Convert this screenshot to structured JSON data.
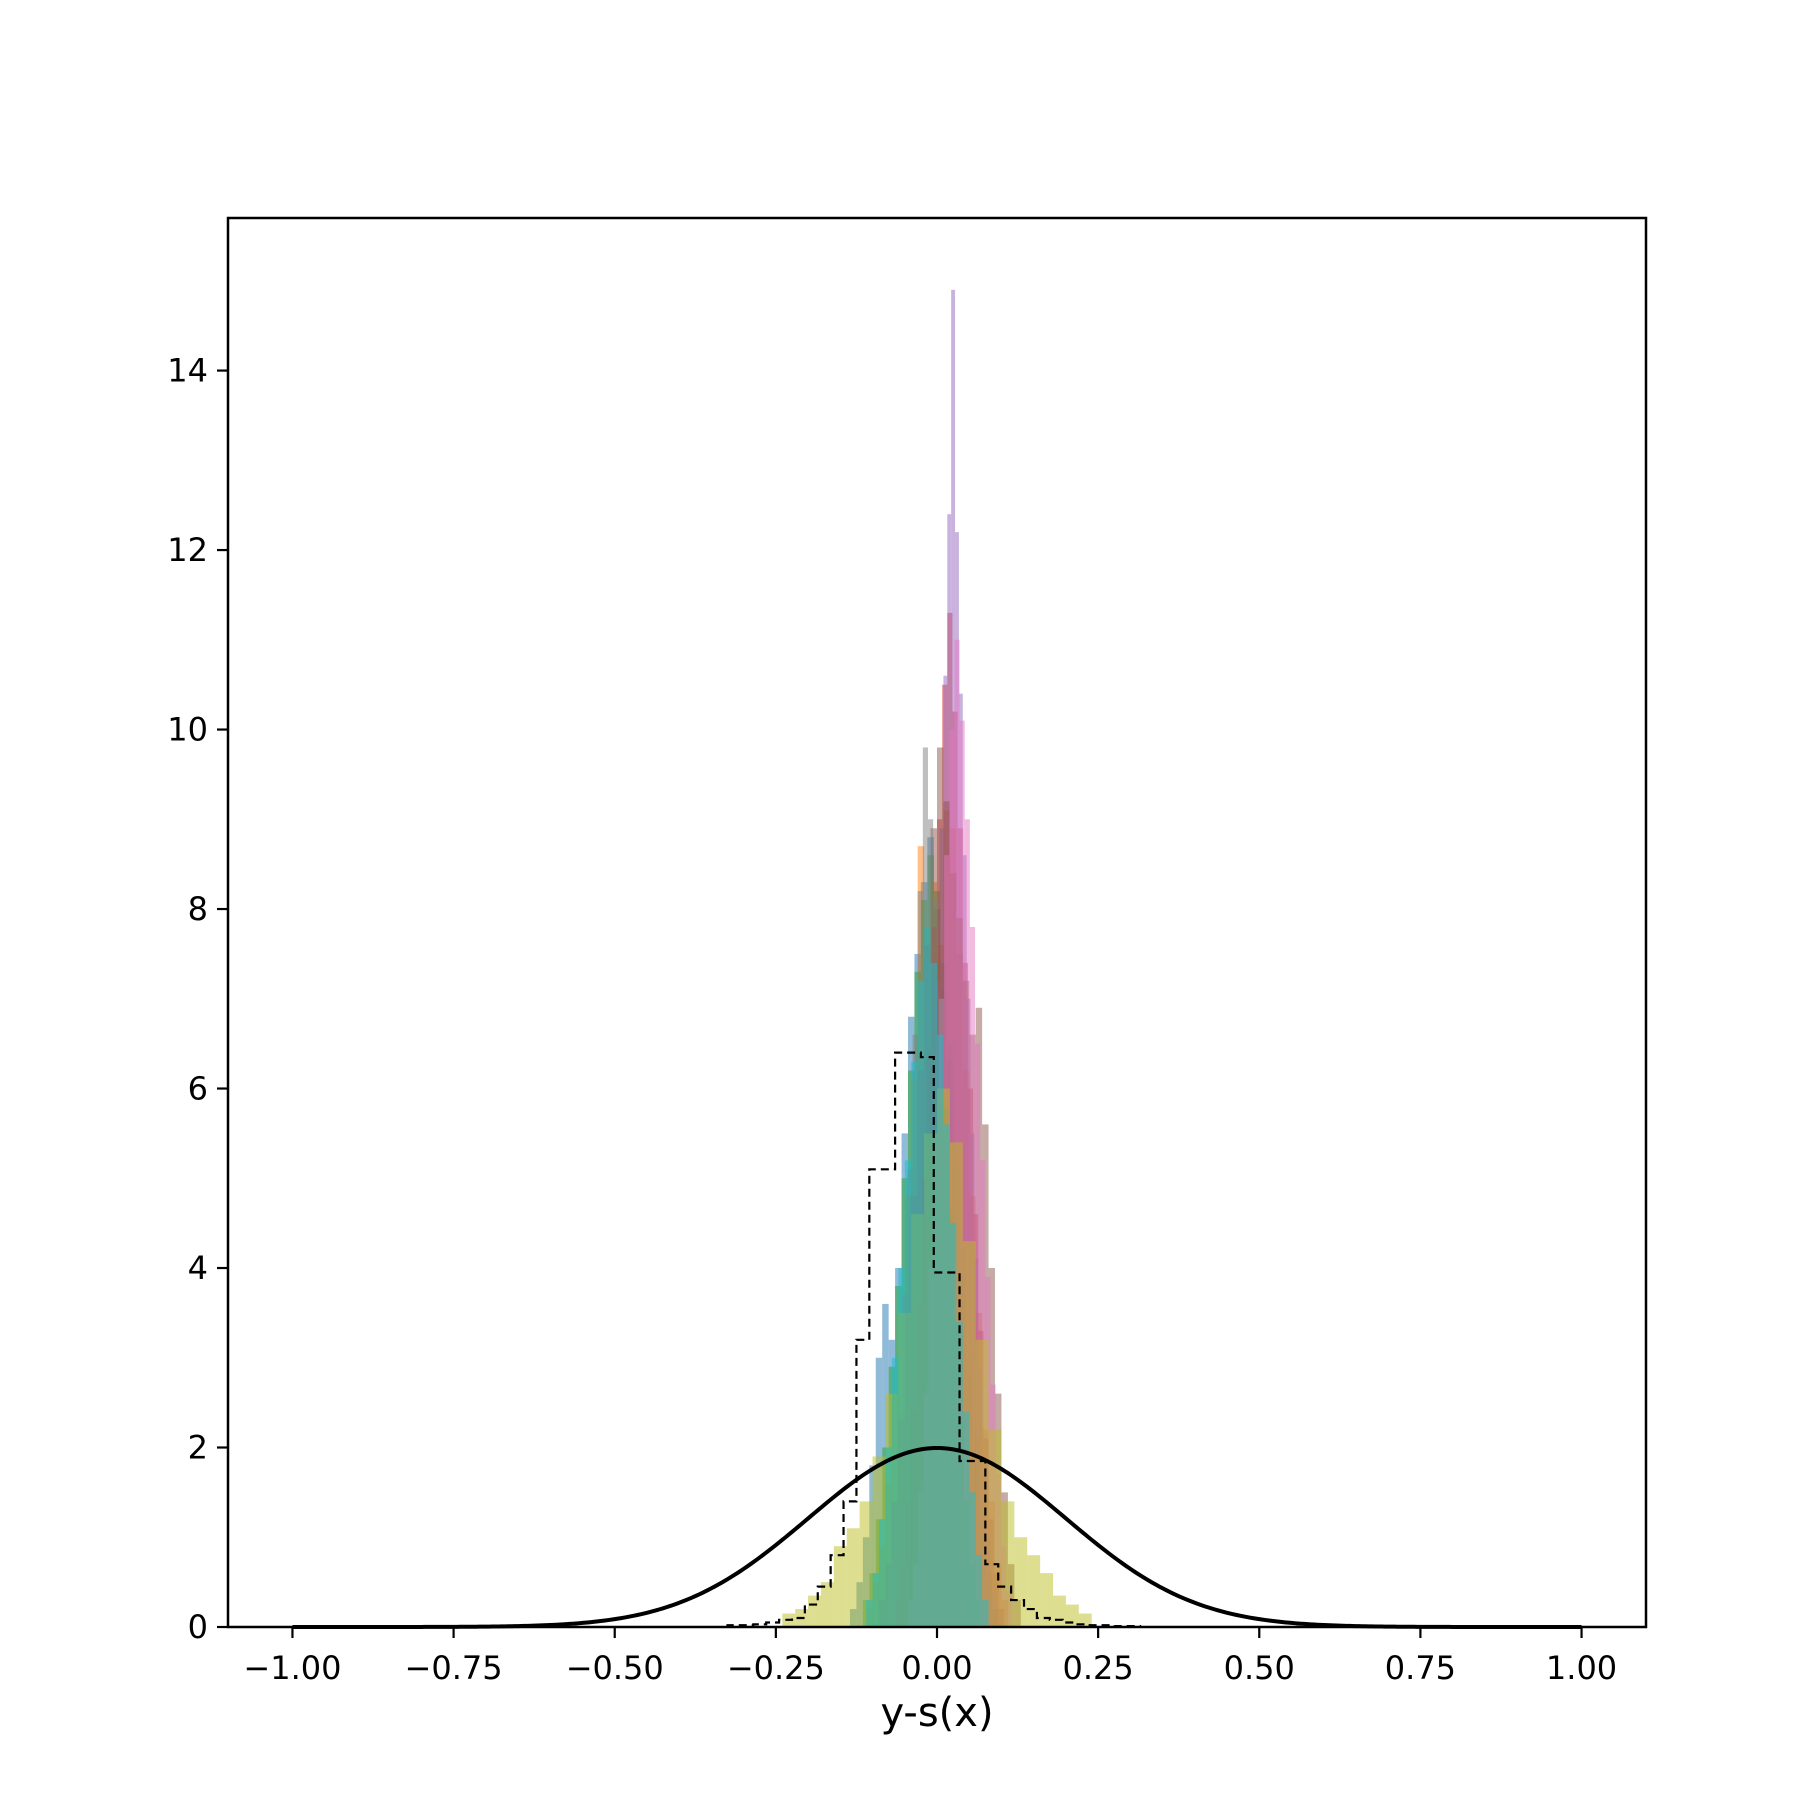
{
  "chart_data": {
    "type": "bar",
    "title": "",
    "xlabel": "y-s(x)",
    "ylabel": "",
    "xlim": [
      -1.1,
      1.1
    ],
    "ylim": [
      0,
      15.7
    ],
    "grid": false,
    "x_ticks": [
      "−1.00",
      "−0.75",
      "−0.50",
      "−0.25",
      "0.00",
      "0.25",
      "0.50",
      "0.75",
      "1.00"
    ],
    "x_tick_values": [
      -1.0,
      -0.75,
      -0.5,
      -0.25,
      0.0,
      0.25,
      0.5,
      0.75,
      1.0
    ],
    "y_ticks": [
      "0",
      "2",
      "4",
      "6",
      "8",
      "10",
      "12",
      "14"
    ],
    "y_tick_values": [
      0,
      2,
      4,
      6,
      8,
      10,
      12,
      14
    ],
    "histograms": [
      {
        "color": "#1f77b4",
        "center": -0.02,
        "width": 0.01,
        "counts": [
          0.2,
          0.5,
          1.0,
          1.8,
          3.0,
          3.6,
          3.2,
          4.0,
          5.5,
          6.8,
          7.5,
          8.3,
          8.8,
          8.0,
          7.1,
          6.5,
          5.4,
          4.2,
          3.0,
          2.1,
          1.2,
          0.6,
          0.2
        ]
      },
      {
        "color": "#ff7f0e",
        "center": 0.0,
        "width": 0.01,
        "counts": [
          0.2,
          0.5,
          0.9,
          1.6,
          2.6,
          3.5,
          4.8,
          6.1,
          8.7,
          7.8,
          8.3,
          7.6,
          9.1,
          8.9,
          7.5,
          6.2,
          4.8,
          3.5,
          2.2,
          1.4,
          0.7,
          0.3
        ]
      },
      {
        "color": "#2ca02c",
        "center": -0.01,
        "width": 0.01,
        "counts": [
          0.3,
          0.6,
          1.2,
          2.0,
          2.9,
          3.8,
          5.0,
          6.2,
          7.3,
          8.1,
          8.6,
          8.2,
          7.4,
          6.3,
          5.1,
          3.9,
          2.8,
          1.8,
          1.0,
          0.5,
          0.2
        ]
      },
      {
        "color": "#d62728",
        "center": 0.02,
        "width": 0.008,
        "counts": [
          0.3,
          0.7,
          1.4,
          2.4,
          3.6,
          5.0,
          6.4,
          7.8,
          9.0,
          10.5,
          11.3,
          10.2,
          8.9,
          7.4,
          6.0,
          4.6,
          3.3,
          2.1,
          1.2,
          0.6,
          0.2
        ]
      },
      {
        "color": "#9467bd",
        "center": 0.025,
        "width": 0.006,
        "counts": [
          0.3,
          0.8,
          1.6,
          2.7,
          4.1,
          5.6,
          7.2,
          8.9,
          10.6,
          12.4,
          14.9,
          12.2,
          10.4,
          8.6,
          7.0,
          5.5,
          4.1,
          2.9,
          1.8,
          1.0,
          0.4
        ]
      },
      {
        "color": "#8c564b",
        "center": 0.02,
        "width": 0.01,
        "counts": [
          0.3,
          0.7,
          1.4,
          2.3,
          3.5,
          4.8,
          6.2,
          7.6,
          8.9,
          9.8,
          9.2,
          8.4,
          7.9,
          7.2,
          6.6,
          6.9,
          5.6,
          4.0,
          2.6,
          1.5,
          0.7,
          0.3
        ]
      },
      {
        "color": "#e377c2",
        "center": 0.035,
        "width": 0.008,
        "counts": [
          0.3,
          0.7,
          1.5,
          2.6,
          4.0,
          5.5,
          7.0,
          8.6,
          10.0,
          11.0,
          10.1,
          9.0,
          7.8,
          6.5,
          5.2,
          3.9,
          2.7,
          1.7,
          0.9,
          0.4
        ]
      },
      {
        "color": "#7f7f7f",
        "center": -0.01,
        "width": 0.008,
        "counts": [
          0.3,
          0.7,
          1.4,
          2.4,
          3.7,
          5.1,
          6.6,
          8.2,
          9.8,
          9.0,
          8.1,
          7.0,
          5.8,
          4.6,
          3.4,
          2.3,
          1.4,
          0.7,
          0.3
        ]
      },
      {
        "color": "#bcbd22",
        "center": 0.0,
        "width": 0.02,
        "counts": [
          0.15,
          0.2,
          0.35,
          0.5,
          0.9,
          1.1,
          1.4,
          1.9,
          2.6,
          3.5,
          4.6,
          5.5,
          6.0,
          5.4,
          4.3,
          3.2,
          2.2,
          1.4,
          1.0,
          0.8,
          0.6,
          0.35,
          0.25,
          0.15
        ]
      },
      {
        "color": "#17becf",
        "center": -0.015,
        "width": 0.01,
        "counts": [
          0.3,
          0.6,
          1.2,
          2.0,
          3.0,
          4.0,
          5.2,
          6.3,
          7.2,
          7.8,
          7.4,
          6.6,
          5.6,
          4.5,
          3.4,
          2.4,
          1.5,
          0.8,
          0.3
        ]
      }
    ],
    "step_histogram": {
      "color": "#000000",
      "edges": [
        -0.325,
        -0.305,
        -0.285,
        -0.265,
        -0.245,
        -0.225,
        -0.205,
        -0.185,
        -0.165,
        -0.145,
        -0.125,
        -0.105,
        -0.085,
        -0.065,
        -0.045,
        -0.025,
        -0.005,
        0.015,
        0.035,
        0.055,
        0.075,
        0.095,
        0.115,
        0.135,
        0.155,
        0.175,
        0.195,
        0.215,
        0.235,
        0.255,
        0.275,
        0.295,
        0.315
      ],
      "counts": [
        0.02,
        0.02,
        0.03,
        0.05,
        0.08,
        0.1,
        0.25,
        0.45,
        0.8,
        1.4,
        3.2,
        5.1,
        5.1,
        6.4,
        6.4,
        6.35,
        3.95,
        3.95,
        1.85,
        1.85,
        0.7,
        0.45,
        0.3,
        0.2,
        0.1,
        0.08,
        0.05,
        0.03,
        0.02,
        0.02,
        0.01,
        0.01
      ]
    },
    "normal_curve": {
      "color": "#000000",
      "mean": 0.0,
      "sigma": 0.2,
      "x_range": [
        -1.0,
        1.0
      ]
    }
  }
}
